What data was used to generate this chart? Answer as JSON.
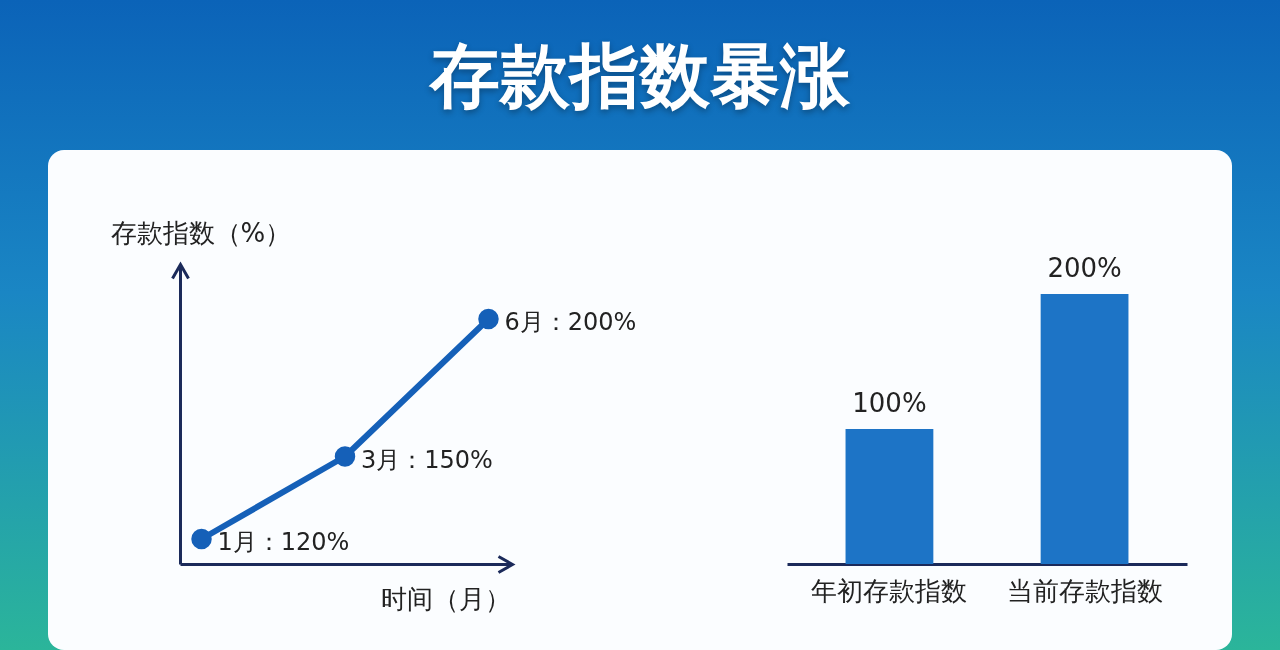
{
  "chart_data": [
    {
      "type": "line",
      "title": "存款指数暴涨",
      "xlabel": "时间（月）",
      "ylabel": "存款指数（%）",
      "categories": [
        null,
        null,
        null
      ],
      "values": [
        120,
        150,
        200
      ],
      "value_labels": [
        "1月：120%",
        "3月：150%",
        "6月：200%"
      ],
      "color": "#1560b8",
      "marker": "circle",
      "tick_labels": false
    },
    {
      "type": "bar",
      "categories": [
        "年初存款指数",
        "当前存款指数"
      ],
      "values": [
        100,
        200
      ],
      "value_labels": [
        "100%",
        "200%"
      ],
      "color": "#1d74c6",
      "tick_labels": "x"
    }
  ]
}
